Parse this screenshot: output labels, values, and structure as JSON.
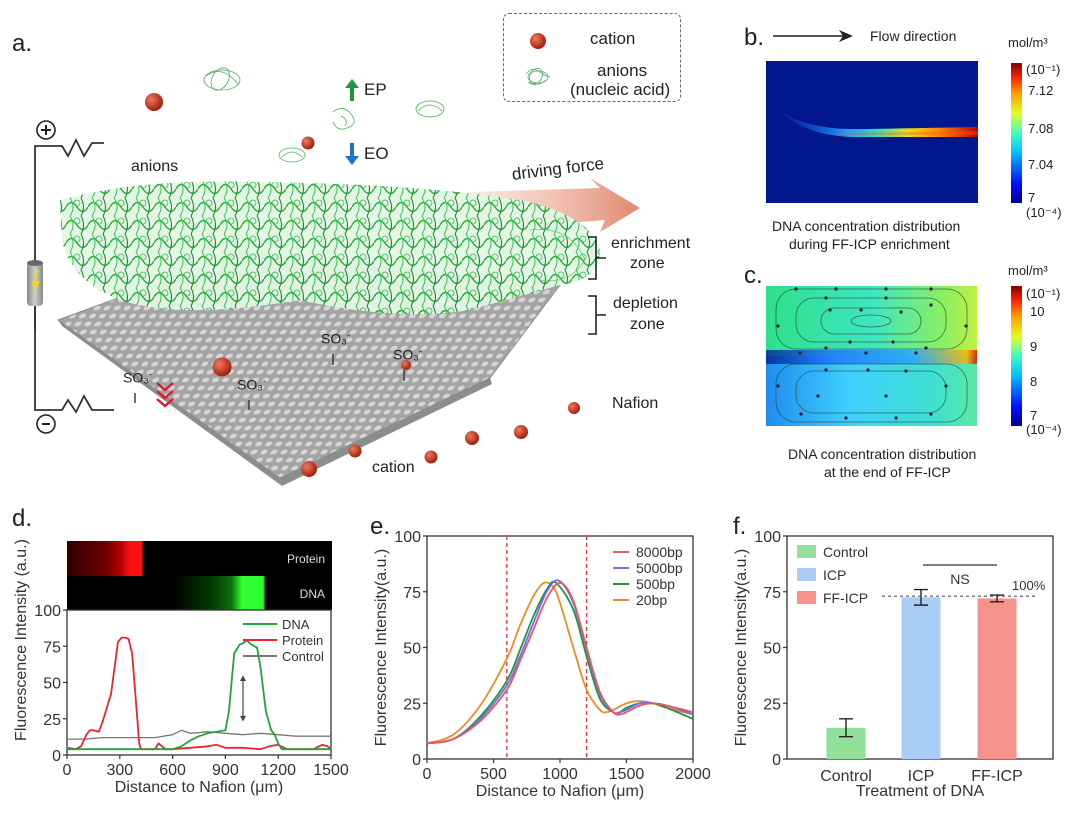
{
  "panels": {
    "a": {
      "label": "a.",
      "legend": {
        "cation": "cation",
        "anions_line1": "anions",
        "anions_line2": "(nucleic acid)"
      },
      "labels": {
        "anions": "anions",
        "ep": "EP",
        "eo": "EO",
        "driving_force": "driving force",
        "enrichment_line1": "enrichment",
        "enrichment_line2": "zone",
        "depletion_line1": "depletion",
        "depletion_line2": "zone",
        "nafion": "Nafion",
        "cation": "cation",
        "so3": "SO₃",
        "so3_charge": "-",
        "plus": "+",
        "minus": "-"
      },
      "colors": {
        "anion_green": "#1aa834",
        "cation_red": "#b52a1a",
        "membrane_gray": "#9a9a9a",
        "ep_arrow": "#1e9a3c",
        "eo_arrow": "#1f74c8",
        "driving_force_arrow": "#e0896e"
      }
    },
    "b": {
      "label": "b.",
      "flow_direction": "Flow direction",
      "unit": "mol/m³",
      "scale_top": "(10⁻¹)",
      "scale_bottom": "(10⁻⁴)",
      "ticks": [
        "7.12",
        "7.08",
        "7.04",
        "7"
      ],
      "caption_line1": "DNA concentration distribution",
      "caption_line2": "during FF-ICP enrichment"
    },
    "c": {
      "label": "c.",
      "unit": "mol/m³",
      "scale_top": "(10⁻¹)",
      "scale_bottom": "(10⁻⁴)",
      "ticks": [
        "10",
        "9",
        "8",
        "7"
      ],
      "caption_line1": "DNA concentration distribution",
      "caption_line2": "at the end of FF-ICP"
    }
  },
  "chart_data": [
    {
      "id": "d",
      "panel_label": "d.",
      "type": "line",
      "title": "",
      "xlabel": "Distance to Nafion (μm)",
      "ylabel": "Fluorescence  Intensity (a.u.)",
      "xlim": [
        0,
        1500
      ],
      "ylim": [
        0,
        100
      ],
      "xticks": [
        "0",
        "300",
        "600",
        "900",
        "1200",
        "1500"
      ],
      "yticks": [
        "0",
        "25",
        "50",
        "75",
        "100"
      ],
      "image_strip_labels": [
        "Protein",
        "DNA"
      ],
      "legend": "top-right",
      "annotation": "double-headed arrow at ~1000 μm between ~25 and ~55",
      "series": [
        {
          "name": "DNA",
          "color": "#1fa53a",
          "x": [
            0,
            100,
            200,
            300,
            400,
            500,
            600,
            650,
            700,
            750,
            800,
            850,
            900,
            920,
            950,
            980,
            1000,
            1020,
            1050,
            1080,
            1100,
            1130,
            1160,
            1180,
            1200,
            1220,
            1300,
            1400,
            1500
          ],
          "y": [
            4,
            4,
            4,
            4,
            4,
            4,
            4,
            6,
            10,
            13,
            15,
            16,
            17,
            30,
            70,
            76,
            77,
            79,
            76,
            74,
            60,
            30,
            17,
            14,
            8,
            4,
            4,
            4,
            4
          ]
        },
        {
          "name": "Protein",
          "color": "#e8262b",
          "x": [
            0,
            50,
            80,
            110,
            130,
            150,
            180,
            200,
            220,
            250,
            270,
            290,
            310,
            330,
            350,
            370,
            390,
            410,
            420,
            450,
            500,
            520,
            540,
            560,
            600,
            700,
            800,
            850,
            900,
            1000,
            1100,
            1150,
            1200,
            1250,
            1300,
            1400,
            1450,
            1480,
            1500
          ],
          "y": [
            5,
            4,
            6,
            14,
            17,
            17,
            16,
            22,
            30,
            42,
            60,
            78,
            81,
            81,
            80,
            70,
            40,
            8,
            4,
            4,
            4,
            8,
            6,
            4,
            4,
            5,
            6,
            7,
            5,
            5,
            4,
            6,
            7,
            4,
            4,
            4,
            7,
            6,
            4
          ]
        },
        {
          "name": "Control",
          "color": "#777777",
          "x": [
            0,
            100,
            200,
            300,
            400,
            500,
            600,
            650,
            700,
            800,
            900,
            1000,
            1100,
            1200,
            1300,
            1400,
            1500
          ],
          "y": [
            11,
            11,
            12,
            12,
            12,
            12,
            14,
            17,
            15,
            16,
            15,
            14,
            15,
            14,
            13,
            13,
            13
          ]
        }
      ]
    },
    {
      "id": "e",
      "panel_label": "e.",
      "type": "line",
      "title": "",
      "xlabel": "Distance to Nafion (μm)",
      "ylabel": "Fluorescence  Intensity(a.u.)",
      "xlim": [
        0,
        2000
      ],
      "ylim": [
        0,
        100
      ],
      "xticks": [
        "0",
        "500",
        "1000",
        "1500",
        "2000"
      ],
      "yticks": [
        "0",
        "25",
        "50",
        "75",
        "100"
      ],
      "legend": "top-right",
      "vertical_reference_lines": [
        600,
        1200
      ],
      "series": [
        {
          "name": "8000bp",
          "color": "#f0545c",
          "x": [
            0,
            200,
            400,
            600,
            700,
            800,
            900,
            1000,
            1100,
            1200,
            1300,
            1400,
            1450,
            1500,
            1600,
            1700,
            1800,
            2000
          ],
          "y": [
            7,
            9,
            17,
            31,
            44,
            58,
            72,
            79,
            71,
            50,
            30,
            21,
            20,
            21,
            24,
            25,
            24,
            21
          ]
        },
        {
          "name": "5000bp",
          "color": "#6e6ef0",
          "x": [
            0,
            200,
            400,
            600,
            700,
            800,
            900,
            990,
            1100,
            1200,
            1300,
            1400,
            1450,
            1500,
            1600,
            1700,
            1800,
            2000
          ],
          "y": [
            7,
            9,
            18,
            33,
            46,
            61,
            75,
            80,
            70,
            49,
            29,
            21,
            21,
            22,
            25,
            25,
            24,
            20
          ]
        },
        {
          "name": "500bp",
          "color": "#1d9638",
          "x": [
            0,
            200,
            400,
            600,
            700,
            800,
            900,
            970,
            1100,
            1200,
            1300,
            1400,
            1450,
            1500,
            1600,
            1700,
            1800,
            2000
          ],
          "y": [
            7,
            9,
            19,
            35,
            49,
            64,
            76,
            79,
            67,
            46,
            27,
            21,
            21,
            23,
            25,
            25,
            23,
            18
          ]
        },
        {
          "name": "20bp",
          "color": "#f08a24",
          "x": [
            0,
            200,
            400,
            600,
            700,
            800,
            880,
            950,
            1000,
            1100,
            1200,
            1300,
            1350,
            1400,
            1500,
            1600,
            1700,
            1800,
            2000
          ],
          "y": [
            7,
            11,
            24,
            45,
            60,
            73,
            79,
            77,
            70,
            50,
            31,
            22,
            21,
            22,
            25,
            26,
            25,
            23,
            20
          ]
        }
      ]
    },
    {
      "id": "f",
      "panel_label": "f.",
      "type": "bar",
      "title": "",
      "xlabel": "Treatment of DNA",
      "ylabel": "Fluorescence  Intensity(a.u.)",
      "ylim": [
        0,
        100
      ],
      "yticks": [
        "0",
        "25",
        "50",
        "75",
        "100"
      ],
      "categories": [
        "Control",
        "ICP",
        "FF-ICP"
      ],
      "values": [
        14,
        72.5,
        72
      ],
      "errors": [
        4,
        3.5,
        1.5
      ],
      "colors": [
        "#93e09b",
        "#a8ccf5",
        "#f7918b"
      ],
      "legend": "top-left",
      "reference_line": {
        "value": 73,
        "label": "100%"
      },
      "significance": {
        "between": [
          "ICP",
          "FF-ICP"
        ],
        "label": "NS"
      }
    }
  ]
}
